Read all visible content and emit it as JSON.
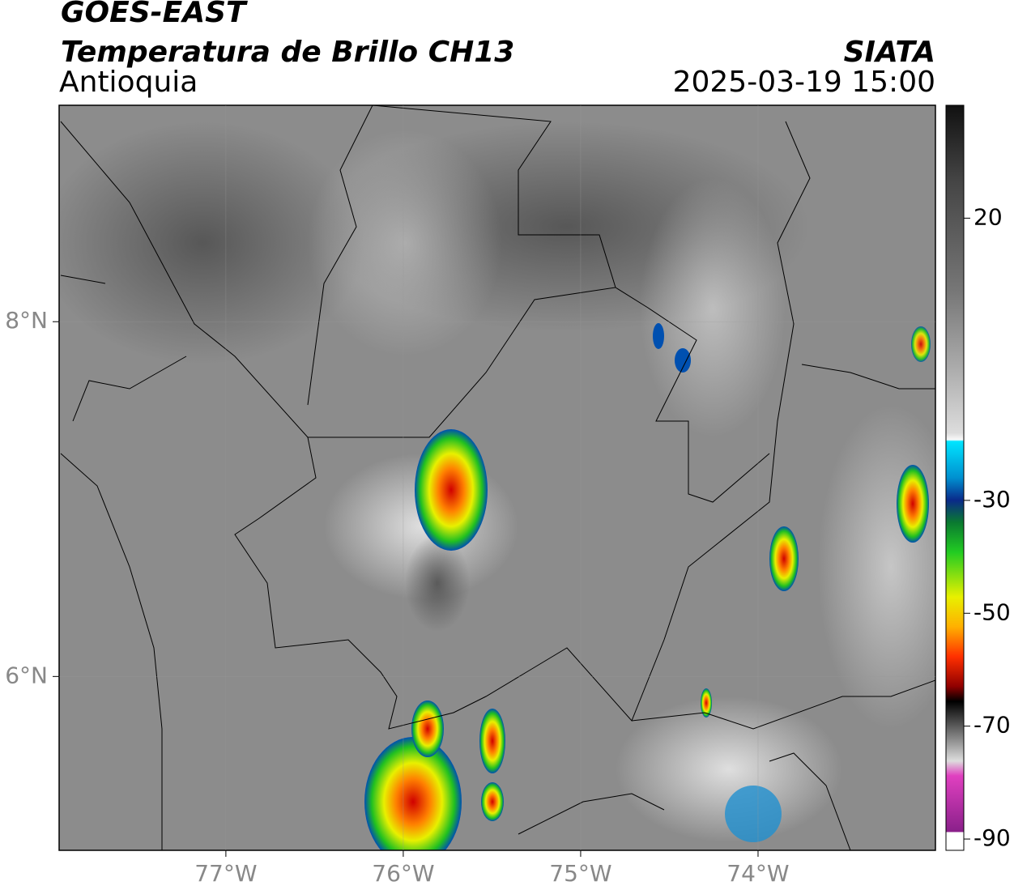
{
  "header": {
    "satellite": "GOES-EAST",
    "product": "Temperatura de Brillo CH13",
    "region": "Antioquia",
    "agency": "SIATA",
    "datetime": "2025-03-19 15:00"
  },
  "map": {
    "xlim": [
      -77.94,
      -73.0
    ],
    "ylim": [
      5.02,
      9.22
    ],
    "xticks": [
      {
        "value": -77,
        "label": "77°W"
      },
      {
        "value": -76,
        "label": "76°W"
      },
      {
        "value": -75,
        "label": "75°W"
      },
      {
        "value": -74,
        "label": "74°W"
      }
    ],
    "yticks": [
      {
        "value": 6,
        "label": "6°N"
      },
      {
        "value": 8,
        "label": "8°N"
      }
    ],
    "grid": true
  },
  "colorbar": {
    "lim": [
      -92,
      40
    ],
    "ticks": [
      20,
      -30,
      -50,
      -70,
      -90
    ]
  }
}
